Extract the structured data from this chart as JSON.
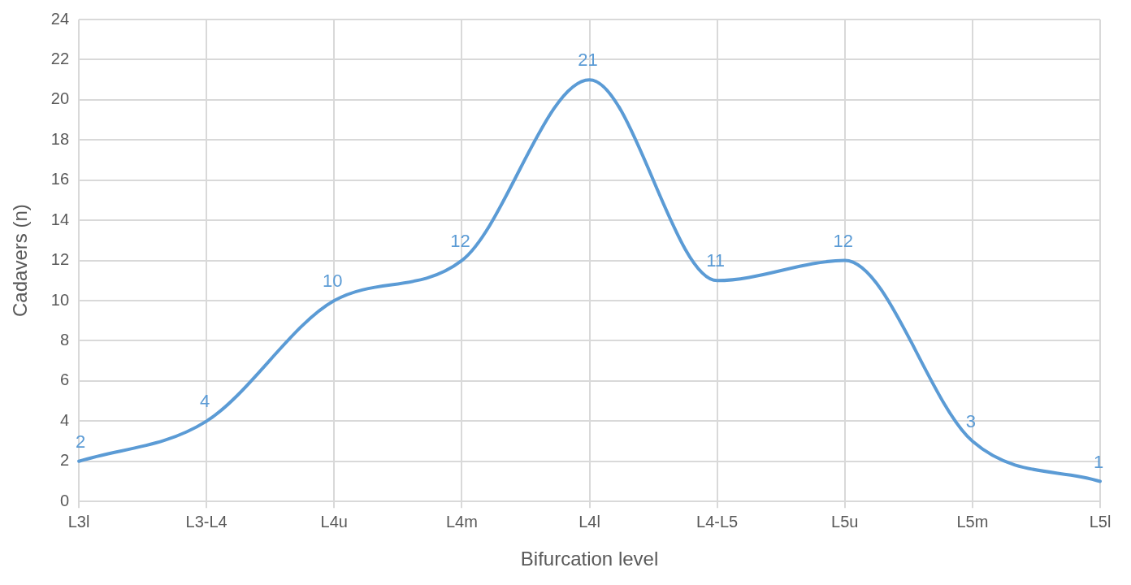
{
  "chart_data": {
    "type": "line",
    "xlabel": "Bifurcation level",
    "ylabel": "Cadavers (n)",
    "categories": [
      "L3l",
      "L3-L4",
      "L4u",
      "L4m",
      "L4l",
      "L4-L5",
      "L5u",
      "L5m",
      "L5l"
    ],
    "series": [
      {
        "color": "#5b9bd5",
        "values": [
          2,
          4,
          10,
          12,
          21,
          11,
          12,
          3,
          1
        ]
      }
    ],
    "ylim": [
      0,
      24
    ],
    "yticks": [
      0,
      2,
      4,
      6,
      8,
      10,
      12,
      14,
      16,
      18,
      20,
      22,
      24
    ],
    "grid": true,
    "data_labels": true,
    "marker": "none",
    "line_style": "solid",
    "legend": false
  }
}
